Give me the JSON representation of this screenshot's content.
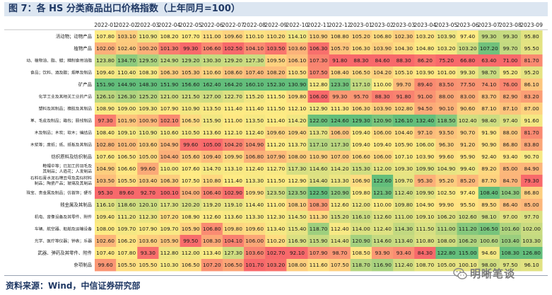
{
  "figure": {
    "title": "图 7：各 HS 分类商品出口价格指数（上年同月=100）",
    "source": "资料来源：Wind，中信证券研究部",
    "watermark": "明晰笔谈",
    "watermark_icon": "wechat-logo-icon"
  },
  "colors": {
    "high": "#63be7b",
    "mid": "#ffeb84",
    "low": "#f8696b"
  },
  "chart_data": {
    "type": "heatmap",
    "title": "各 HS 分类商品出口价格指数（上年同月=100）",
    "color_scale": {
      "low": "#f8696b",
      "mid": "#ffeb84",
      "high": "#63be7b",
      "scope": "per-column"
    },
    "columns": [
      "2022-01",
      "2022-02",
      "2022-03",
      "2022-04",
      "2022-05",
      "2022-06",
      "2022-07",
      "2022-08",
      "2022-09",
      "2022-10",
      "2022-11",
      "2022-12",
      "2023-01",
      "2023-02",
      "2023-03",
      "2023-04",
      "2023-05",
      "2023-06",
      "2023-07",
      "2023-08",
      "2023-09"
    ],
    "rows": [
      {
        "label": "活动物；动物产品",
        "values": [
          107.8,
          103.1,
          110.9,
          108.2,
          107.7,
          111.0,
          109.6,
          110.1,
          110.2,
          114.1,
          110.9,
          108.8,
          105.2,
          106.8,
          102.3,
          103.2,
          103.9,
          97.4,
          99.3,
          99.3,
          95.8
        ]
      },
      {
        "label": "植物产品",
        "values": [
          102.0,
          102.4,
          100.2,
          101.3,
          99.3,
          106.6,
          102.5,
          104.1,
          103.5,
          103.6,
          106.3,
          105.7,
          106.3,
          103.9,
          104.3,
          104.8,
          103.2,
          103.2,
          107.2,
          99.7,
          95.5
        ]
      },
      {
        "label": "动、植物油、脂、蜡；精制食用油脂",
        "values": [
          123.8,
          134.7,
          129.5,
          124.9,
          129.2,
          130.3,
          129.2,
          127.3,
          109.5,
          106.1,
          107.3,
          91.8,
          88.3,
          84.6,
          88.3,
          86.2,
          75.2,
          66.8,
          63.4,
          71.0,
          81.7
        ]
      },
      {
        "label": "食品；饮料、酒及醋；烟草及制品",
        "values": [
          109.4,
          110.4,
          108.3,
          106.3,
          105.3,
          110.6,
          108.6,
          107.4,
          108.2,
          110.5,
          107.5,
          108.4,
          106.5,
          104.2,
          105.1,
          103.9,
          101.0,
          99.3,
          98.7,
          95.2,
          95.2
        ]
      },
      {
        "label": "矿产品",
        "values": [
          151.9,
          144.9,
          148.3,
          151.9,
          156.6,
          162.4,
          164.2,
          160.1,
          152.3,
          130.9,
          112.8,
          123.3,
          117.1,
          110.0,
          99.7,
          89.4,
          83.5,
          77.5,
          74.1,
          76.0,
          86.1
        ]
      },
      {
        "label": "化学工业及其相关工业的产品",
        "values": [
          126.1,
          126.3,
          125.2,
          121.0,
          121.5,
          127.0,
          122.7,
          115.2,
          111.5,
          109.8,
          106.0,
          99.3,
          95.7,
          88.3,
          91.8,
          91.0,
          88.0,
          83.0,
          83.7,
          82.9,
          83.2
        ]
      },
      {
        "label": "塑料及其制品；橡胶及其制品",
        "values": [
          108.9,
          109.0,
          109.3,
          107.9,
          110.9,
          113.5,
          111.4,
          111.4,
          111.5,
          112.1,
          112.9,
          111.3,
          106.3,
          103.9,
          102.8,
          94.5,
          90.1,
          90.6,
          87.1,
          87.1,
          87.0
        ]
      },
      {
        "label": "革、毛皮及制品；箱包；肠线制品",
        "values": [
          97.3,
          101.9,
          100.9,
          102.1,
          106.5,
          115.9,
          111.0,
          113.5,
          111.4,
          114.2,
          122.0,
          124.6,
          129.3,
          120.9,
          126.1,
          132.4,
          118.5,
          102.4,
          98.4,
          97.4,
          91.6
        ]
      },
      {
        "label": "木及制品；木炭；软木；编结品",
        "values": [
          108.4,
          109.1,
          110.9,
          110.6,
          110.5,
          113.6,
          112.1,
          112.4,
          109.6,
          109.4,
          113.7,
          106.0,
          109.4,
          106.0,
          104.4,
          97.1,
          93.5,
          90.7,
          91.9,
          88.0,
          81.7
        ]
      },
      {
        "label": "木浆等；废纸；纸、纸板及其制品",
        "values": [
          102.8,
          101.0,
          103.6,
          104.9,
          99.6,
          105.0,
          104.2,
          104.9,
          111.2,
          113.7,
          117.1,
          117.3,
          109.4,
          109.4,
          105.9,
          106.0,
          96.3,
          91.2,
          90.9,
          86.8,
          83.8
        ]
      },
      {
        "label": "纺织原料及纺织制品",
        "values": [
          107.6,
          106.5,
          105.0,
          104.4,
          105.6,
          109.4,
          109.9,
          106.8,
          107.9,
          108.0,
          110.9,
          107.0,
          106.6,
          106.0,
          107.1,
          103.9,
          99.6,
          95.9,
          92.4,
          93.4,
          90.7
        ]
      },
      {
        "label": "鞋帽伞等；已加工的羽毛及其制品；人造花；人发制品",
        "values": [
          104.9,
          106.6,
          99.6,
          110.0,
          107.6,
          114.7,
          113.1,
          112.4,
          112.7,
          117.3,
          114.6,
          114.2,
          115.3,
          112.0,
          109.3,
          109.9,
          104.9,
          99.4,
          89.2,
          85.0,
          84.9
        ]
      },
      {
        "label": "石料石膏水泥石棉云母及类似材料制品；陶瓷产品；玻璃及其制品",
        "values": [
          103.5,
          105.5,
          103.4,
          106.3,
          107.5,
          110.8,
          111.4,
          113.3,
          111.5,
          112.9,
          114.4,
          113.3,
          106.9,
          122.6,
          109.7,
          95.3,
          95.2,
          85.2,
          87.7,
          84.7,
          79.3
        ]
      },
      {
        "label": "珠宝、贵金属及制品；仿首饰；硬币",
        "values": [
          95.3,
          89.6,
          92.7,
          100.1,
          104.0,
          106.4,
          102.9,
          109.9,
          123.5,
          123.5,
          122.5,
          120.9,
          109.8,
          121.3,
          112.4,
          109.9,
          102.5,
          97.4,
          108.4,
          104.3,
          86.8
        ]
      },
      {
        "label": "贱金属及其制品",
        "values": [
          116.1,
          118.6,
          120.1,
          117.3,
          120.2,
          119.2,
          119.1,
          114.4,
          111.0,
          108.1,
          108.3,
          112.6,
          112.0,
          110.0,
          109.8,
          104.9,
          99.9,
          95.5,
          89.5,
          86.4,
          85.0
        ]
      },
      {
        "label": "机电、音像设备及其零件、附件",
        "values": [
          109.4,
          111.2,
          112.3,
          107.2,
          108.9,
          112.6,
          113.6,
          113.3,
          112.3,
          114.5,
          111.3,
          115.2,
          116.1,
          112.6,
          111.0,
          109.1,
          106.2,
          102.6,
          98.1,
          97.0,
          97.7
        ]
      },
      {
        "label": "车辆、航空器、船舶及运输设备",
        "values": [
          108.0,
          109.7,
          107.9,
          109.7,
          105.9,
          106.8,
          109.8,
          109.6,
          113.4,
          115.4,
          118.7,
          112.4,
          114.0,
          112.4,
          114.3,
          111.5,
          111.0,
          111.2,
          106.5,
          101.6,
          102.0
        ]
      },
      {
        "label": "光学、医疗等仪器；钟表；乐器",
        "values": [
          102.6,
          106.2,
          103.6,
          105.9,
          99.5,
          108.3,
          104.1,
          106.0,
          110.2,
          116.9,
          115.9,
          114.4,
          120.9,
          114.6,
          113.4,
          110.8,
          108.0,
          106.2,
          100.6,
          103.4,
          103.3
        ]
      },
      {
        "label": "武器、弹药及其零件、附件",
        "values": [
          107.4,
          107.8,
          93.3,
          112.8,
          112.0,
          113.4,
          127.3,
          103.6,
          102.7,
          92.1,
          107.9,
          98.7,
          108.5,
          93.9,
          93.4,
          84.3,
          122.8,
          115.0,
          94.6,
          108.3,
          126.8
        ]
      },
      {
        "label": "杂项制品",
        "values": [
          99.6,
          105.5,
          105.5,
          110.3,
          106.5,
          107.2,
          106.5,
          101.7,
          103.2,
          108.0,
          111.6,
          107.5,
          118.7,
          116.9,
          112.4,
          108.7,
          105.0,
          100.1,
          98.0,
          97.5,
          96.1
        ]
      }
    ]
  }
}
